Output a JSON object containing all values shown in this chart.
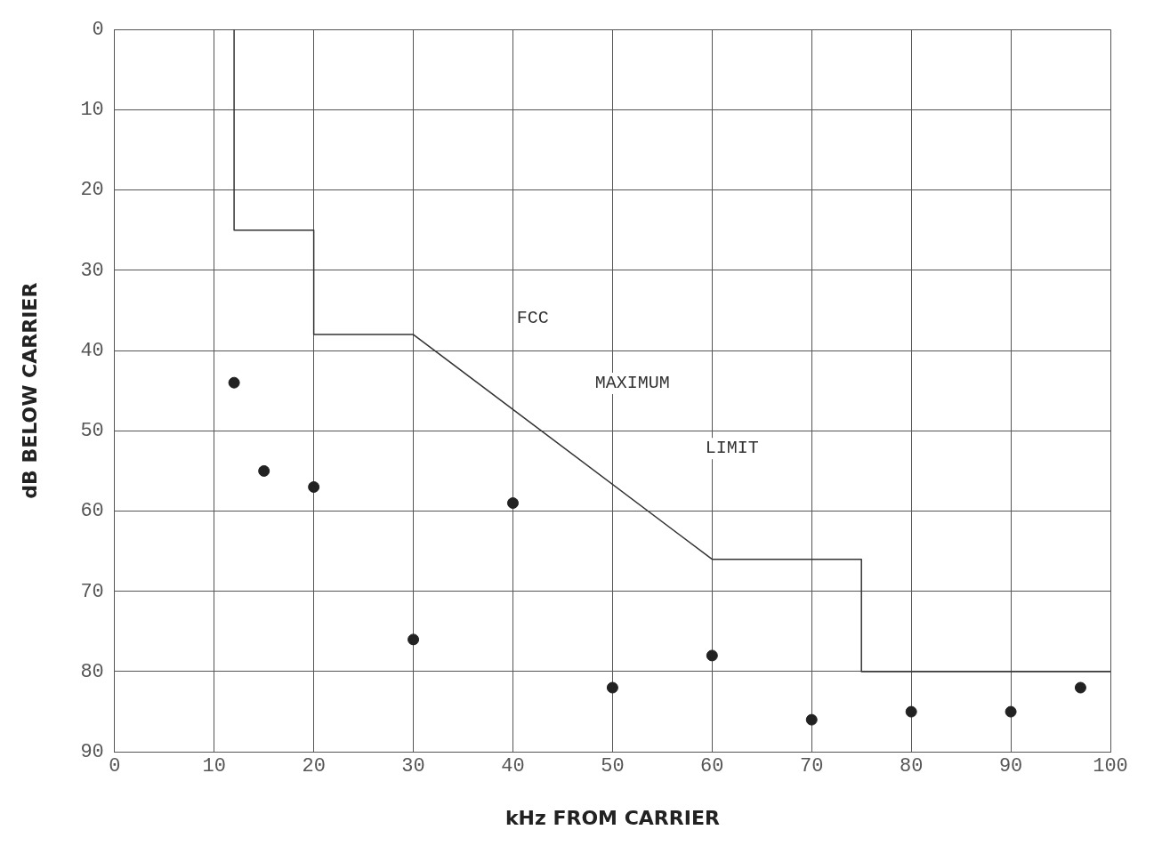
{
  "chart_data": {
    "type": "scatter",
    "xlabel": "kHz FROM CARRIER",
    "ylabel": "dB BELOW CARRIER",
    "xlim": [
      0,
      100
    ],
    "xticks": [
      0,
      10,
      20,
      30,
      40,
      50,
      60,
      70,
      80,
      90,
      100
    ],
    "ylim": [
      90,
      0
    ],
    "yticks": [
      0,
      10,
      20,
      30,
      40,
      50,
      60,
      70,
      80,
      90
    ],
    "grid": true,
    "legend": false,
    "series": [
      {
        "type": "line",
        "color": "#333333",
        "marker": "none",
        "line_style": "solid",
        "x": [
          12,
          12,
          20,
          20,
          30,
          60,
          75,
          75,
          100
        ],
        "values": [
          0,
          25,
          25,
          38,
          38,
          66,
          66,
          80,
          80
        ]
      },
      {
        "color": "#222222",
        "marker": "circle",
        "x": [
          12,
          15,
          20,
          30,
          40,
          50,
          60,
          70,
          80,
          90,
          97
        ],
        "values": [
          44,
          55,
          57,
          76,
          59,
          82,
          78,
          86,
          85,
          85,
          82
        ]
      }
    ],
    "annotations": [
      "FCC",
      "MAXIMUM",
      "LIMIT"
    ]
  }
}
